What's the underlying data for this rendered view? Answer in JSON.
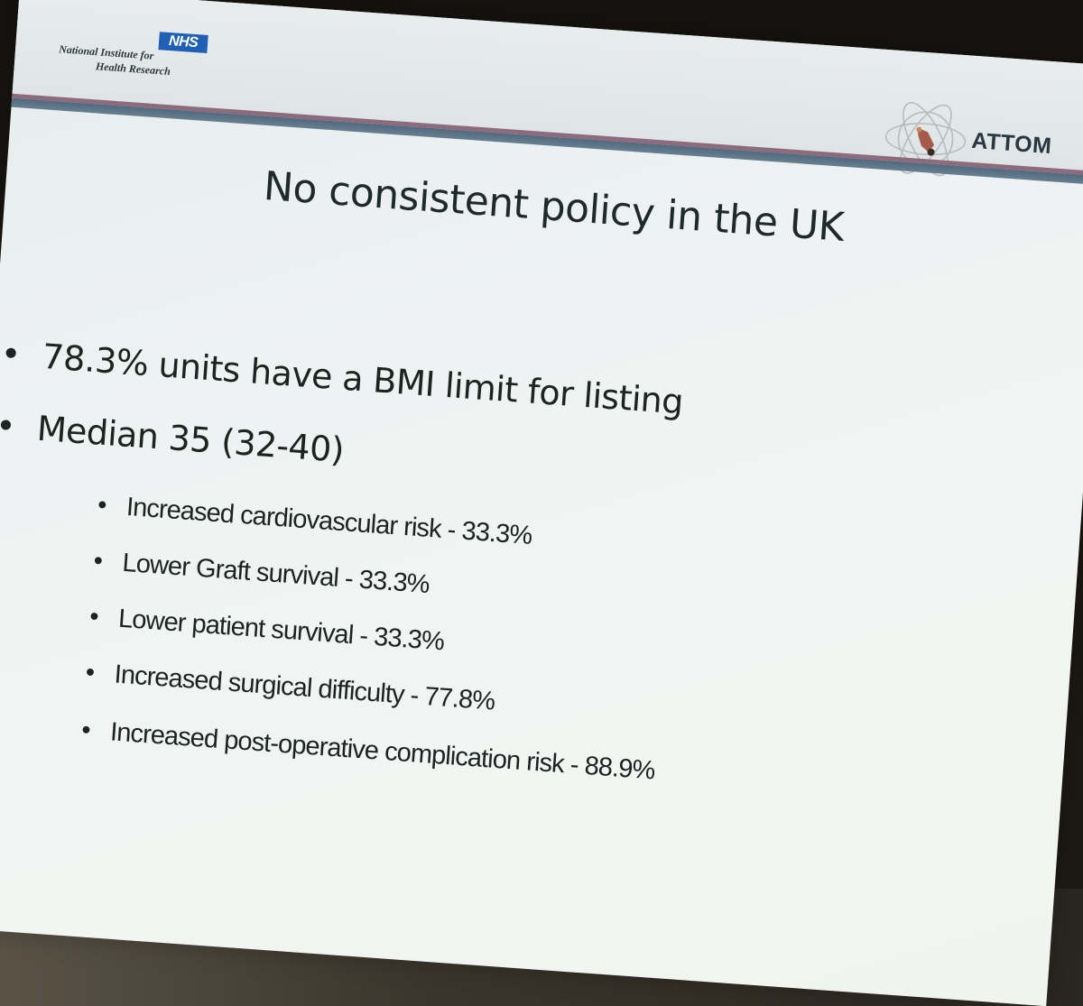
{
  "logos": {
    "nhs_badge": "NHS",
    "nihr_line_1": "National Institute for",
    "nihr_line_2": "Health Research",
    "attom_label": "ATTOM"
  },
  "slide": {
    "title": "No consistent policy in the UK",
    "bullets": [
      "78.3% units have a BMI limit for listing",
      "Median 35 (32-40)"
    ],
    "sub_bullets": [
      "Increased cardiovascular risk - 33.3%",
      "Lower Graft survival - 33.3%",
      "Lower patient survival - 33.3%",
      "Increased surgical difficulty -  77.8%",
      "Increased post-operative complication risk - 88.9%"
    ],
    "bullet_glyph": "•"
  },
  "colors": {
    "nhs_blue": "#1f5fb5",
    "divider_mauve": "#8d6b7d",
    "divider_slate": "#50697d"
  }
}
